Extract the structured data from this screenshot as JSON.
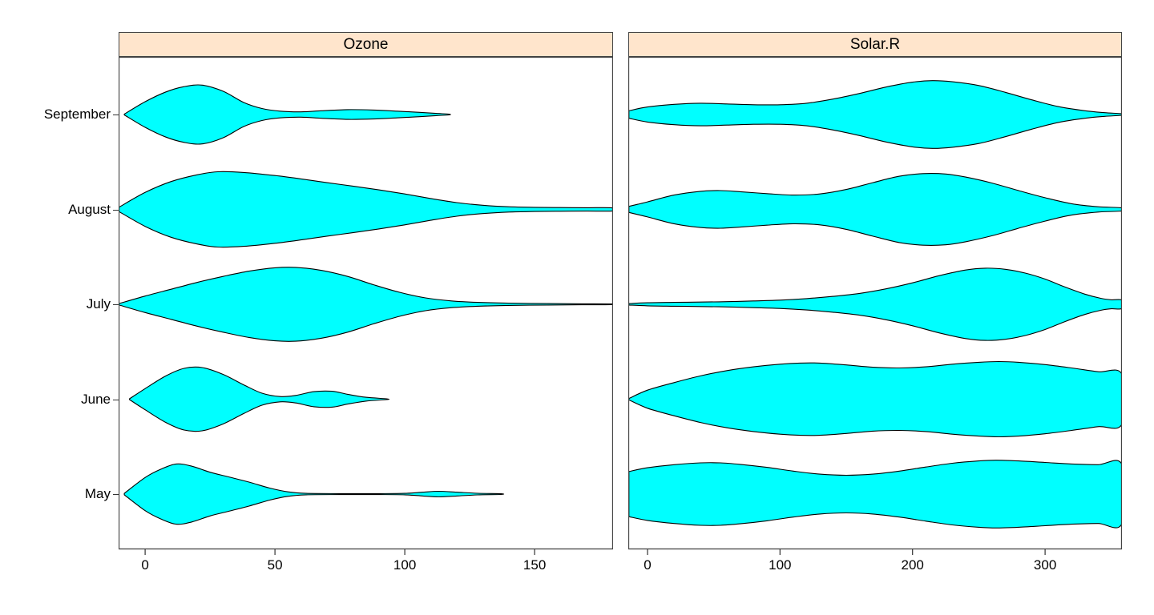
{
  "figure": {
    "background": "#ffffff",
    "strip_fill": "#ffe5cc",
    "violin_fill": "#00ffff",
    "violin_stroke": "#000000",
    "border_color": "#444444"
  },
  "chart_data": {
    "type": "violin",
    "orientation": "horizontal",
    "grid": "off",
    "legend": "none",
    "rows_top_to_bottom": [
      "September",
      "August",
      "July",
      "June",
      "May"
    ],
    "categories": [
      "May",
      "June",
      "July",
      "August",
      "September"
    ],
    "panels": [
      {
        "title": "Ozone",
        "xlim": [
          -10.2,
          180.2
        ],
        "xticks": [
          0,
          50,
          100,
          150
        ],
        "xtick_labels": [
          "0",
          "50",
          "100",
          "150"
        ],
        "violins": [
          {
            "month": "September",
            "profile": [
              [
                -8,
                0.01
              ],
              [
                0,
                0.34
              ],
              [
                8,
                0.6
              ],
              [
                15,
                0.74
              ],
              [
                22,
                0.78
              ],
              [
                30,
                0.62
              ],
              [
                38,
                0.32
              ],
              [
                45,
                0.16
              ],
              [
                52,
                0.09
              ],
              [
                60,
                0.07
              ],
              [
                68,
                0.1
              ],
              [
                78,
                0.13
              ],
              [
                88,
                0.12
              ],
              [
                97,
                0.09
              ],
              [
                105,
                0.06
              ],
              [
                112,
                0.03
              ],
              [
                117,
                0.01
              ]
            ]
          },
          {
            "month": "August",
            "profile": [
              [
                -10,
                0.06
              ],
              [
                0,
                0.45
              ],
              [
                10,
                0.74
              ],
              [
                20,
                0.92
              ],
              [
                28,
                1.0
              ],
              [
                38,
                0.98
              ],
              [
                50,
                0.9
              ],
              [
                60,
                0.81
              ],
              [
                70,
                0.71
              ],
              [
                80,
                0.62
              ],
              [
                90,
                0.52
              ],
              [
                100,
                0.41
              ],
              [
                110,
                0.29
              ],
              [
                120,
                0.18
              ],
              [
                130,
                0.11
              ],
              [
                140,
                0.07
              ],
              [
                150,
                0.055
              ],
              [
                160,
                0.05
              ],
              [
                170,
                0.045
              ],
              [
                180,
                0.04
              ]
            ]
          },
          {
            "month": "July",
            "profile": [
              [
                -10,
                0.02
              ],
              [
                0,
                0.22
              ],
              [
                10,
                0.4
              ],
              [
                20,
                0.58
              ],
              [
                30,
                0.74
              ],
              [
                40,
                0.88
              ],
              [
                50,
                0.97
              ],
              [
                58,
                0.98
              ],
              [
                68,
                0.9
              ],
              [
                78,
                0.74
              ],
              [
                88,
                0.52
              ],
              [
                98,
                0.32
              ],
              [
                108,
                0.17
              ],
              [
                118,
                0.09
              ],
              [
                128,
                0.05
              ],
              [
                140,
                0.03
              ],
              [
                155,
                0.02
              ],
              [
                168,
                0.012
              ],
              [
                180,
                0.008
              ]
            ]
          },
          {
            "month": "June",
            "profile": [
              [
                -6,
                0.01
              ],
              [
                0,
                0.28
              ],
              [
                8,
                0.62
              ],
              [
                15,
                0.82
              ],
              [
                22,
                0.84
              ],
              [
                30,
                0.66
              ],
              [
                38,
                0.38
              ],
              [
                45,
                0.16
              ],
              [
                52,
                0.07
              ],
              [
                58,
                0.1
              ],
              [
                65,
                0.2
              ],
              [
                72,
                0.21
              ],
              [
                78,
                0.13
              ],
              [
                85,
                0.05
              ],
              [
                93,
                0.01
              ]
            ]
          },
          {
            "month": "May",
            "profile": [
              [
                -8,
                0.02
              ],
              [
                0,
                0.44
              ],
              [
                6,
                0.66
              ],
              [
                12,
                0.8
              ],
              [
                18,
                0.74
              ],
              [
                25,
                0.58
              ],
              [
                32,
                0.46
              ],
              [
                40,
                0.32
              ],
              [
                48,
                0.16
              ],
              [
                55,
                0.06
              ],
              [
                62,
                0.02
              ],
              [
                75,
                0.012
              ],
              [
                90,
                0.012
              ],
              [
                100,
                0.02
              ],
              [
                107,
                0.05
              ],
              [
                113,
                0.075
              ],
              [
                120,
                0.05
              ],
              [
                128,
                0.022
              ],
              [
                137,
                0.01
              ]
            ]
          }
        ]
      },
      {
        "title": "Solar.R",
        "xlim": [
          -14.5,
          358
        ],
        "xticks": [
          0,
          100,
          200,
          300
        ],
        "xtick_labels": [
          "0",
          "100",
          "200",
          "300"
        ],
        "violins": [
          {
            "month": "September",
            "profile": [
              [
                -14,
                0.1
              ],
              [
                0,
                0.2
              ],
              [
                20,
                0.27
              ],
              [
                40,
                0.3
              ],
              [
                60,
                0.28
              ],
              [
                80,
                0.26
              ],
              [
                100,
                0.26
              ],
              [
                120,
                0.3
              ],
              [
                140,
                0.41
              ],
              [
                160,
                0.56
              ],
              [
                180,
                0.73
              ],
              [
                200,
                0.86
              ],
              [
                215,
                0.9
              ],
              [
                230,
                0.87
              ],
              [
                250,
                0.77
              ],
              [
                270,
                0.59
              ],
              [
                290,
                0.39
              ],
              [
                310,
                0.21
              ],
              [
                330,
                0.1
              ],
              [
                345,
                0.05
              ],
              [
                358,
                0.02
              ]
            ]
          },
          {
            "month": "August",
            "profile": [
              [
                -14,
                0.08
              ],
              [
                0,
                0.2
              ],
              [
                20,
                0.38
              ],
              [
                40,
                0.48
              ],
              [
                55,
                0.5
              ],
              [
                70,
                0.47
              ],
              [
                90,
                0.42
              ],
              [
                110,
                0.38
              ],
              [
                130,
                0.41
              ],
              [
                150,
                0.53
              ],
              [
                170,
                0.71
              ],
              [
                190,
                0.88
              ],
              [
                208,
                0.95
              ],
              [
                225,
                0.94
              ],
              [
                240,
                0.86
              ],
              [
                260,
                0.7
              ],
              [
                280,
                0.5
              ],
              [
                300,
                0.31
              ],
              [
                320,
                0.15
              ],
              [
                340,
                0.07
              ],
              [
                358,
                0.04
              ]
            ]
          },
          {
            "month": "July",
            "profile": [
              [
                -14,
                0.02
              ],
              [
                0,
                0.04
              ],
              [
                20,
                0.05
              ],
              [
                40,
                0.06
              ],
              [
                60,
                0.07
              ],
              [
                80,
                0.09
              ],
              [
                100,
                0.11
              ],
              [
                120,
                0.15
              ],
              [
                140,
                0.21
              ],
              [
                160,
                0.29
              ],
              [
                180,
                0.41
              ],
              [
                200,
                0.57
              ],
              [
                220,
                0.76
              ],
              [
                240,
                0.91
              ],
              [
                255,
                0.96
              ],
              [
                270,
                0.93
              ],
              [
                285,
                0.83
              ],
              [
                300,
                0.67
              ],
              [
                315,
                0.46
              ],
              [
                330,
                0.27
              ],
              [
                342,
                0.16
              ],
              [
                350,
                0.12
              ],
              [
                358,
                0.11
              ]
            ]
          },
          {
            "month": "June",
            "profile": [
              [
                -14,
                0.02
              ],
              [
                0,
                0.24
              ],
              [
                20,
                0.44
              ],
              [
                40,
                0.62
              ],
              [
                60,
                0.76
              ],
              [
                80,
                0.86
              ],
              [
                100,
                0.93
              ],
              [
                115,
                0.96
              ],
              [
                130,
                0.96
              ],
              [
                150,
                0.91
              ],
              [
                170,
                0.85
              ],
              [
                190,
                0.83
              ],
              [
                210,
                0.86
              ],
              [
                230,
                0.93
              ],
              [
                250,
                0.98
              ],
              [
                265,
                1.0
              ],
              [
                280,
                0.98
              ],
              [
                300,
                0.92
              ],
              [
                320,
                0.83
              ],
              [
                340,
                0.73
              ],
              [
                358,
                0.66
              ]
            ]
          },
          {
            "month": "May",
            "profile": [
              [
                -14,
                0.6
              ],
              [
                0,
                0.7
              ],
              [
                20,
                0.78
              ],
              [
                40,
                0.83
              ],
              [
                55,
                0.83
              ],
              [
                70,
                0.79
              ],
              [
                90,
                0.71
              ],
              [
                110,
                0.61
              ],
              [
                130,
                0.53
              ],
              [
                150,
                0.5
              ],
              [
                170,
                0.53
              ],
              [
                190,
                0.61
              ],
              [
                210,
                0.72
              ],
              [
                230,
                0.82
              ],
              [
                250,
                0.88
              ],
              [
                263,
                0.9
              ],
              [
                280,
                0.88
              ],
              [
                300,
                0.84
              ],
              [
                320,
                0.8
              ],
              [
                340,
                0.78
              ],
              [
                358,
                0.78
              ]
            ]
          }
        ]
      }
    ]
  }
}
